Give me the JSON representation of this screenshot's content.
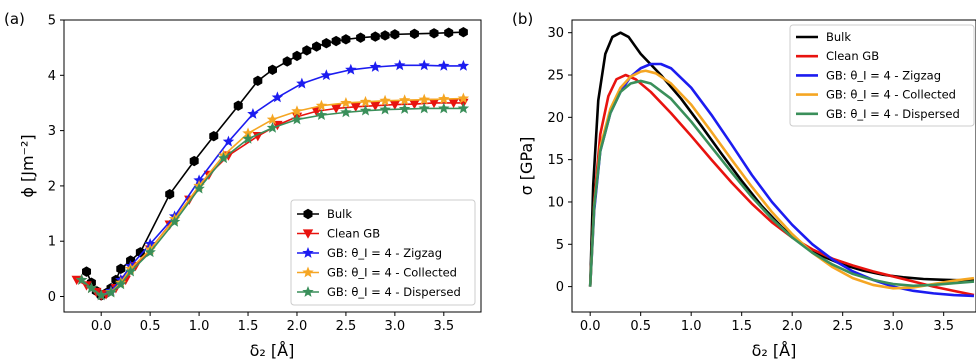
{
  "chart_data": [
    {
      "type": "line",
      "panel_label": "(a)",
      "xlabel": "δ₂ [Å]",
      "ylabel": "ϕ [Jm⁻²]",
      "xlim": [
        -0.38,
        3.88
      ],
      "ylim": [
        -0.28,
        5.0
      ],
      "xticks": [
        "0.0",
        "0.5",
        "1.0",
        "1.5",
        "2.0",
        "2.5",
        "3.0",
        "3.5"
      ],
      "xtick_values": [
        0,
        0.5,
        1.0,
        1.5,
        2.0,
        2.5,
        3.0,
        3.5
      ],
      "yticks": [
        "0",
        "1",
        "2",
        "3",
        "4",
        "5"
      ],
      "ytick_values": [
        0,
        1,
        2,
        3,
        4,
        5
      ],
      "grid": false,
      "legend_position": "bottom-right",
      "series": [
        {
          "name": "Bulk",
          "color": "#000000",
          "marker": "hexagon",
          "x": [
            -0.15,
            -0.1,
            -0.05,
            0.0,
            0.05,
            0.1,
            0.15,
            0.2,
            0.3,
            0.4,
            0.7,
            0.95,
            1.15,
            1.4,
            1.6,
            1.75,
            1.9,
            2.0,
            2.1,
            2.2,
            2.3,
            2.4,
            2.5,
            2.65,
            2.8,
            2.9,
            3.0,
            3.2,
            3.4,
            3.55,
            3.7
          ],
          "y": [
            0.45,
            0.25,
            0.1,
            0.02,
            0.06,
            0.15,
            0.3,
            0.5,
            0.65,
            0.8,
            1.85,
            2.45,
            2.9,
            3.45,
            3.9,
            4.1,
            4.25,
            4.35,
            4.45,
            4.52,
            4.58,
            4.62,
            4.65,
            4.68,
            4.7,
            4.72,
            4.74,
            4.75,
            4.76,
            4.77,
            4.78
          ]
        },
        {
          "name": "Clean GB",
          "color": "#e8130f",
          "marker": "triangle-down",
          "x": [
            -0.25,
            -0.15,
            -0.05,
            0.0,
            0.05,
            0.15,
            0.25,
            0.35,
            0.5,
            0.7,
            0.9,
            1.1,
            1.3,
            1.6,
            1.8,
            2.0,
            2.2,
            2.4,
            2.6,
            2.8,
            3.0,
            3.2,
            3.4,
            3.6,
            3.7
          ],
          "y": [
            0.3,
            0.2,
            0.08,
            0.02,
            0.04,
            0.15,
            0.3,
            0.55,
            0.85,
            1.3,
            1.75,
            2.2,
            2.55,
            2.9,
            3.1,
            3.25,
            3.35,
            3.4,
            3.43,
            3.45,
            3.47,
            3.48,
            3.5,
            3.5,
            3.5
          ]
        },
        {
          "name": "GB: θ_I = 4 - Zigzag",
          "color": "#1c1cf0",
          "marker": "star",
          "x": [
            -0.2,
            -0.1,
            0.0,
            0.1,
            0.2,
            0.3,
            0.5,
            0.75,
            1.0,
            1.3,
            1.55,
            1.8,
            2.05,
            2.3,
            2.55,
            2.8,
            3.05,
            3.3,
            3.5,
            3.7
          ],
          "y": [
            0.3,
            0.15,
            0.02,
            0.1,
            0.3,
            0.55,
            0.95,
            1.45,
            2.1,
            2.8,
            3.3,
            3.6,
            3.85,
            4.0,
            4.1,
            4.15,
            4.18,
            4.18,
            4.17,
            4.17
          ]
        },
        {
          "name": "GB: θ_I = 4 - Collected",
          "color": "#f5a623",
          "marker": "star",
          "x": [
            -0.2,
            -0.1,
            0.0,
            0.1,
            0.2,
            0.3,
            0.5,
            0.75,
            1.0,
            1.25,
            1.5,
            1.75,
            2.0,
            2.25,
            2.5,
            2.7,
            2.9,
            3.1,
            3.3,
            3.5,
            3.7
          ],
          "y": [
            0.3,
            0.15,
            0.02,
            0.08,
            0.25,
            0.5,
            0.85,
            1.4,
            2.0,
            2.55,
            2.95,
            3.2,
            3.35,
            3.45,
            3.5,
            3.52,
            3.54,
            3.55,
            3.56,
            3.57,
            3.58
          ]
        },
        {
          "name": "GB: θ_I = 4 - Dispersed",
          "color": "#3a8f5a",
          "marker": "star",
          "x": [
            -0.2,
            -0.1,
            0.0,
            0.1,
            0.2,
            0.3,
            0.5,
            0.75,
            1.0,
            1.25,
            1.5,
            1.75,
            2.0,
            2.25,
            2.5,
            2.7,
            2.9,
            3.1,
            3.3,
            3.5,
            3.7
          ],
          "y": [
            0.3,
            0.15,
            0.02,
            0.07,
            0.22,
            0.45,
            0.8,
            1.35,
            1.95,
            2.5,
            2.85,
            3.05,
            3.2,
            3.28,
            3.33,
            3.36,
            3.38,
            3.39,
            3.4,
            3.4,
            3.4
          ]
        }
      ]
    },
    {
      "type": "line",
      "panel_label": "(b)",
      "xlabel": "δ₂ [Å]",
      "ylabel": "σ [GPa]",
      "xlim": [
        -0.18,
        3.82
      ],
      "ylim": [
        -3.0,
        31.5
      ],
      "xticks": [
        "0.0",
        "0.5",
        "1.0",
        "1.5",
        "2.0",
        "2.5",
        "3.0",
        "3.5"
      ],
      "xtick_values": [
        0,
        0.5,
        1.0,
        1.5,
        2.0,
        2.5,
        3.0,
        3.5
      ],
      "yticks": [
        "0",
        "5",
        "10",
        "15",
        "20",
        "25",
        "30"
      ],
      "ytick_values": [
        0,
        5,
        10,
        15,
        20,
        25,
        30
      ],
      "grid": false,
      "legend_position": "top-right",
      "series": [
        {
          "name": "Bulk",
          "color": "#000000",
          "x": [
            0.0,
            0.03,
            0.08,
            0.15,
            0.22,
            0.3,
            0.38,
            0.5,
            0.7,
            0.9,
            1.1,
            1.3,
            1.5,
            1.7,
            1.9,
            2.1,
            2.3,
            2.5,
            2.7,
            2.9,
            3.1,
            3.3,
            3.5,
            3.8
          ],
          "y": [
            0,
            12,
            22,
            27.5,
            29.5,
            30.0,
            29.5,
            27.5,
            25.0,
            22.2,
            19.0,
            15.7,
            12.5,
            9.5,
            7.0,
            5.0,
            3.6,
            2.6,
            1.9,
            1.4,
            1.1,
            0.9,
            0.8,
            0.7
          ]
        },
        {
          "name": "Clean GB",
          "color": "#e8130f",
          "x": [
            0.0,
            0.04,
            0.1,
            0.18,
            0.26,
            0.35,
            0.45,
            0.6,
            0.8,
            1.0,
            1.2,
            1.4,
            1.6,
            1.8,
            2.0,
            2.2,
            2.4,
            2.6,
            2.8,
            3.0,
            3.2,
            3.4,
            3.6,
            3.8
          ],
          "y": [
            0,
            10,
            18,
            22.5,
            24.5,
            25.0,
            24.5,
            23.0,
            20.5,
            17.8,
            15.0,
            12.3,
            9.8,
            7.6,
            5.8,
            4.4,
            3.3,
            2.5,
            1.8,
            1.2,
            0.6,
            0.0,
            -0.5,
            -1.0
          ]
        },
        {
          "name": "GB: θ_I = 4 - Zigzag",
          "color": "#1c1cf0",
          "x": [
            0.0,
            0.04,
            0.1,
            0.2,
            0.3,
            0.4,
            0.5,
            0.6,
            0.7,
            0.8,
            1.0,
            1.2,
            1.4,
            1.6,
            1.8,
            2.0,
            2.2,
            2.4,
            2.6,
            2.8,
            3.0,
            3.2,
            3.4,
            3.6,
            3.8
          ],
          "y": [
            0,
            9,
            16,
            20.5,
            23.0,
            24.8,
            25.8,
            26.3,
            26.3,
            25.8,
            23.5,
            20.3,
            16.8,
            13.2,
            10.0,
            7.3,
            5.0,
            3.2,
            1.8,
            0.8,
            0.0,
            -0.5,
            -0.8,
            -1.0,
            -1.1
          ]
        },
        {
          "name": "GB: θ_I = 4 - Collected",
          "color": "#f5a623",
          "x": [
            0.0,
            0.04,
            0.1,
            0.2,
            0.3,
            0.4,
            0.5,
            0.55,
            0.65,
            0.8,
            1.0,
            1.2,
            1.4,
            1.6,
            1.8,
            2.0,
            2.2,
            2.4,
            2.6,
            2.8,
            3.0,
            3.2,
            3.4,
            3.6,
            3.8
          ],
          "y": [
            0,
            9.5,
            16.5,
            21.0,
            23.5,
            24.8,
            25.4,
            25.5,
            25.2,
            24.0,
            21.5,
            18.3,
            15.0,
            11.8,
            8.8,
            6.2,
            4.0,
            2.3,
            1.0,
            0.2,
            -0.2,
            -0.1,
            0.3,
            0.7,
            1.0
          ]
        },
        {
          "name": "GB: θ_I = 4 - Dispersed",
          "color": "#3a8f5a",
          "x": [
            0.0,
            0.04,
            0.1,
            0.2,
            0.3,
            0.4,
            0.5,
            0.6,
            0.8,
            1.0,
            1.2,
            1.4,
            1.6,
            1.8,
            2.0,
            2.2,
            2.4,
            2.6,
            2.8,
            3.0,
            3.2,
            3.4,
            3.6,
            3.8
          ],
          "y": [
            0,
            9.5,
            16.0,
            20.5,
            23.0,
            24.0,
            24.3,
            24.0,
            22.2,
            19.5,
            16.5,
            13.5,
            10.6,
            8.0,
            5.8,
            4.0,
            2.6,
            1.5,
            0.8,
            0.3,
            0.1,
            0.2,
            0.4,
            0.6
          ]
        }
      ]
    }
  ]
}
